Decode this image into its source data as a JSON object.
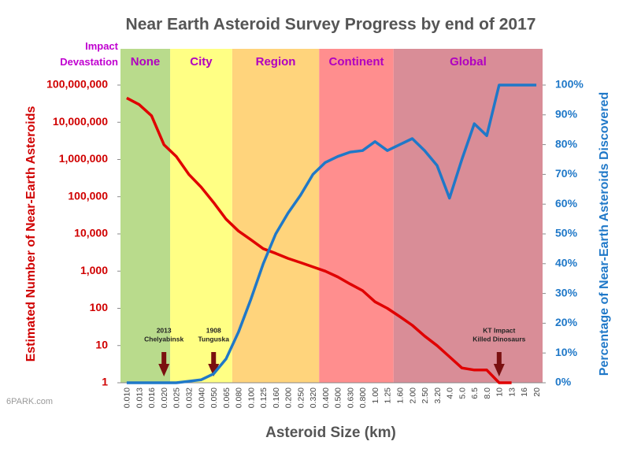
{
  "chart_data": {
    "type": "line",
    "title": "Near Earth Asteroid Survey Progress by end of 2017",
    "x_label": "Asteroid Size (km)",
    "y_label": "Estimated Number of Near-Earth Asteroids",
    "y2_label": "Percentage of Near-Earth Asteroids Discovered",
    "band_title": "Impact Devastation",
    "categories": [
      "0.010",
      "0.013",
      "0.016",
      "0.020",
      "0.025",
      "0.032",
      "0.040",
      "0.050",
      "0.065",
      "0.080",
      "0.100",
      "0.125",
      "0.160",
      "0.200",
      "0.250",
      "0.320",
      "0.400",
      "0.500",
      "0.630",
      "0.800",
      "1.00",
      "1.25",
      "1.60",
      "2.00",
      "2.50",
      "3.20",
      "4.0",
      "5.0",
      "6.5",
      "8.0",
      "10",
      "13",
      "16",
      "20"
    ],
    "bands": [
      {
        "label": "None",
        "from": "0.010",
        "to": "0.020",
        "color": "#b9db8c"
      },
      {
        "label": "City",
        "from": "0.025",
        "to": "0.065",
        "color": "#ffff84"
      },
      {
        "label": "Region",
        "from": "0.080",
        "to": "0.320",
        "color": "#ffd47c"
      },
      {
        "label": "Continent",
        "from": "0.400",
        "to": "1.25",
        "color": "#ff8e8e"
      },
      {
        "label": "Global",
        "from": "1.60",
        "to": "20",
        "color": "#d98d97"
      }
    ],
    "series": [
      {
        "name": "Estimated Number",
        "color": "#e00000",
        "axis": "y",
        "values": [
          45000000,
          30000000,
          15000000,
          2500000,
          1200000,
          400000,
          180000,
          70000,
          25000,
          12000,
          7000,
          4000,
          3000,
          2200,
          1700,
          1300,
          1000,
          700,
          450,
          300,
          150,
          100,
          60,
          35,
          18,
          10,
          5,
          2.5,
          2.2,
          2.2,
          1,
          1,
          null,
          null
        ]
      },
      {
        "name": "Percentage Discovered",
        "color": "#1f78c8",
        "axis": "y2",
        "values": [
          0,
          0,
          0,
          0,
          0,
          0.5,
          1,
          3,
          8,
          17,
          28,
          40,
          50,
          57,
          63,
          70,
          74,
          76,
          77.5,
          78,
          81,
          78,
          80,
          82,
          78,
          73,
          62,
          75,
          87,
          83,
          100,
          100,
          100,
          100
        ]
      }
    ],
    "ylog": true,
    "ylim": [
      1,
      100000000
    ],
    "yticks": [
      1,
      10,
      100,
      {
        "value": 1000,
        "label": "1,000"
      },
      {
        "value": 10000,
        "label": "10,000"
      },
      {
        "value": 100000,
        "label": "100,000"
      },
      {
        "value": 1000000,
        "label": "1,000,000"
      },
      {
        "value": 10000000,
        "label": "10,000,000"
      },
      {
        "value": 100000000,
        "label": "100,000,000"
      }
    ],
    "y2lim": [
      0,
      100
    ],
    "y2ticks": [
      {
        "value": 0,
        "label": "0%"
      },
      {
        "value": 10,
        "label": "10%"
      },
      {
        "value": 20,
        "label": "20%"
      },
      {
        "value": 30,
        "label": "30%"
      },
      {
        "value": 40,
        "label": "40%"
      },
      {
        "value": 50,
        "label": "50%"
      },
      {
        "value": 60,
        "label": "60%"
      },
      {
        "value": 70,
        "label": "70%"
      },
      {
        "value": 80,
        "label": "80%"
      },
      {
        "value": 90,
        "label": "90%"
      },
      {
        "value": 100,
        "label": "100%"
      }
    ],
    "annotations": [
      {
        "lines": [
          "2013",
          "Chelyabinsk"
        ],
        "at": "0.020"
      },
      {
        "lines": [
          "1908",
          "Tunguska"
        ],
        "at": "0.050"
      },
      {
        "lines": [
          "KT Impact",
          "Killed Dinosaurs"
        ],
        "at": "10"
      }
    ],
    "watermark": "6PARK.com"
  }
}
